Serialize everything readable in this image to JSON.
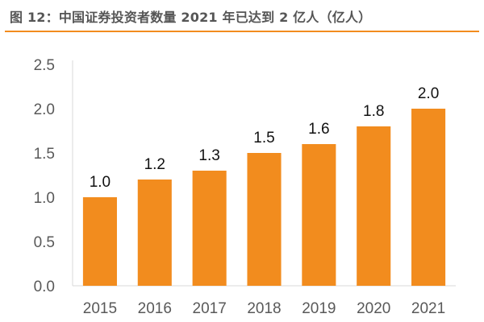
{
  "figure": {
    "title": "图 12：中国证券投资者数量 2021 年已达到 2 亿人（亿人）",
    "title_color": "#555555",
    "rule_color": "#F28C1E"
  },
  "chart_data": {
    "type": "bar",
    "title": "",
    "xlabel": "",
    "ylabel": "",
    "categories": [
      "2015",
      "2016",
      "2017",
      "2018",
      "2019",
      "2020",
      "2021"
    ],
    "values": [
      1.0,
      1.2,
      1.3,
      1.5,
      1.6,
      1.8,
      2.0
    ],
    "data_labels": [
      "1.0",
      "1.2",
      "1.3",
      "1.5",
      "1.6",
      "1.8",
      "2.0"
    ],
    "ylim": [
      0,
      2.5
    ],
    "yticks": [
      "0.0",
      "0.5",
      "1.0",
      "1.5",
      "2.0",
      "2.5"
    ],
    "grid": false,
    "legend": "none",
    "bar_color": "#F28C1E",
    "axis_color": "#D9D9D9"
  }
}
